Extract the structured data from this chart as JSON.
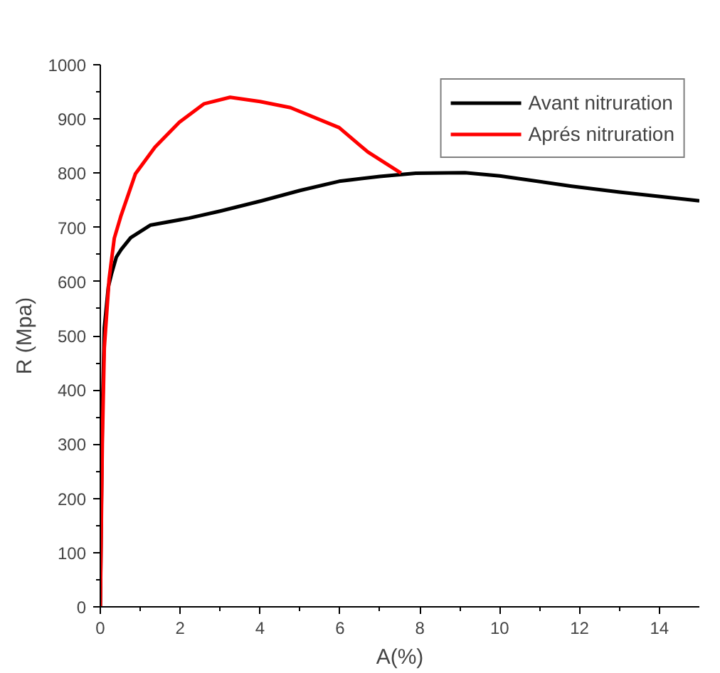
{
  "chart_data": {
    "type": "line",
    "xlabel": "A(%)",
    "ylabel": "R (Mpa)",
    "series": [
      {
        "name": "Avant nitruration",
        "color": "#000000",
        "x": [
          0,
          0.05,
          0.1,
          0.2,
          0.28,
          0.4,
          0.52,
          0.76,
          1.25,
          2.22,
          3,
          4.04,
          5,
          5.98,
          7,
          7.9,
          9.13,
          10,
          11.8,
          13,
          15
        ],
        "values": [
          0,
          350,
          514,
          590,
          614,
          645,
          659,
          681,
          704,
          717,
          730,
          749,
          768,
          785,
          794,
          800,
          801,
          795,
          776,
          765,
          749
        ]
      },
      {
        "name": "Aprés nitruration",
        "color": "#ff0000",
        "x": [
          0,
          0.05,
          0.1,
          0.22,
          0.35,
          0.52,
          0.88,
          1.37,
          1.98,
          2.6,
          3.25,
          4,
          4.76,
          5.98,
          6.7,
          7.53
        ],
        "values": [
          0,
          300,
          478,
          605,
          680,
          722,
          799,
          848,
          894,
          928,
          940,
          932,
          921,
          884,
          839,
          800
        ]
      }
    ],
    "xlim": [
      0,
      15
    ],
    "ylim": [
      0,
      1000
    ],
    "xticks": [
      0,
      {
        "value": 1,
        "label": null
      },
      2,
      {
        "value": 3,
        "label": null
      },
      4,
      {
        "value": 5,
        "label": null
      },
      6,
      {
        "value": 7,
        "label": null
      },
      8,
      {
        "value": 9,
        "label": null
      },
      10,
      {
        "value": 11,
        "label": null
      },
      12,
      {
        "value": 13,
        "label": null
      },
      14
    ],
    "yticks": [
      0,
      {
        "value": 50,
        "label": null
      },
      100,
      {
        "value": 150,
        "label": null
      },
      200,
      {
        "value": 250,
        "label": null
      },
      300,
      {
        "value": 350,
        "label": null
      },
      400,
      {
        "value": 450,
        "label": null
      },
      500,
      {
        "value": 550,
        "label": null
      },
      600,
      {
        "value": 650,
        "label": null
      },
      700,
      {
        "value": 750,
        "label": null
      },
      800,
      {
        "value": 850,
        "label": null
      },
      900,
      {
        "value": 950,
        "label": null
      },
      1000
    ],
    "grid": false,
    "legend": "top right",
    "line_style": "solid",
    "marker": "none"
  }
}
